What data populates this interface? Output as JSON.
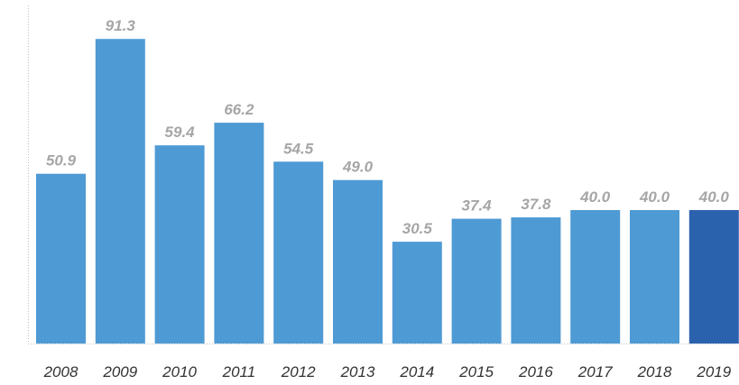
{
  "chart_data": {
    "type": "bar",
    "categories": [
      "2008",
      "2009",
      "2010",
      "2011",
      "2012",
      "2013",
      "2014",
      "2015",
      "2016",
      "2017",
      "2018",
      "2019"
    ],
    "values": [
      50.9,
      91.3,
      59.4,
      66.2,
      54.5,
      49.0,
      30.5,
      37.4,
      37.8,
      40.0,
      40.0,
      40.0
    ],
    "value_labels": [
      "50.9",
      "91.3",
      "59.4",
      "66.2",
      "54.5",
      "49.0",
      "30.5",
      "37.4",
      "37.8",
      "40.0",
      "40.0",
      "40.0"
    ],
    "title": "",
    "xlabel": "",
    "ylabel": "",
    "ylim": [
      0,
      100
    ],
    "grid": false,
    "colors": {
      "bar": "#4e9ad4",
      "highlight_bar": "#2b62ae",
      "value_label": "#a6a6a6",
      "tick_label": "#333333",
      "axis": "#bfbfbf"
    },
    "highlight_index": 11
  }
}
